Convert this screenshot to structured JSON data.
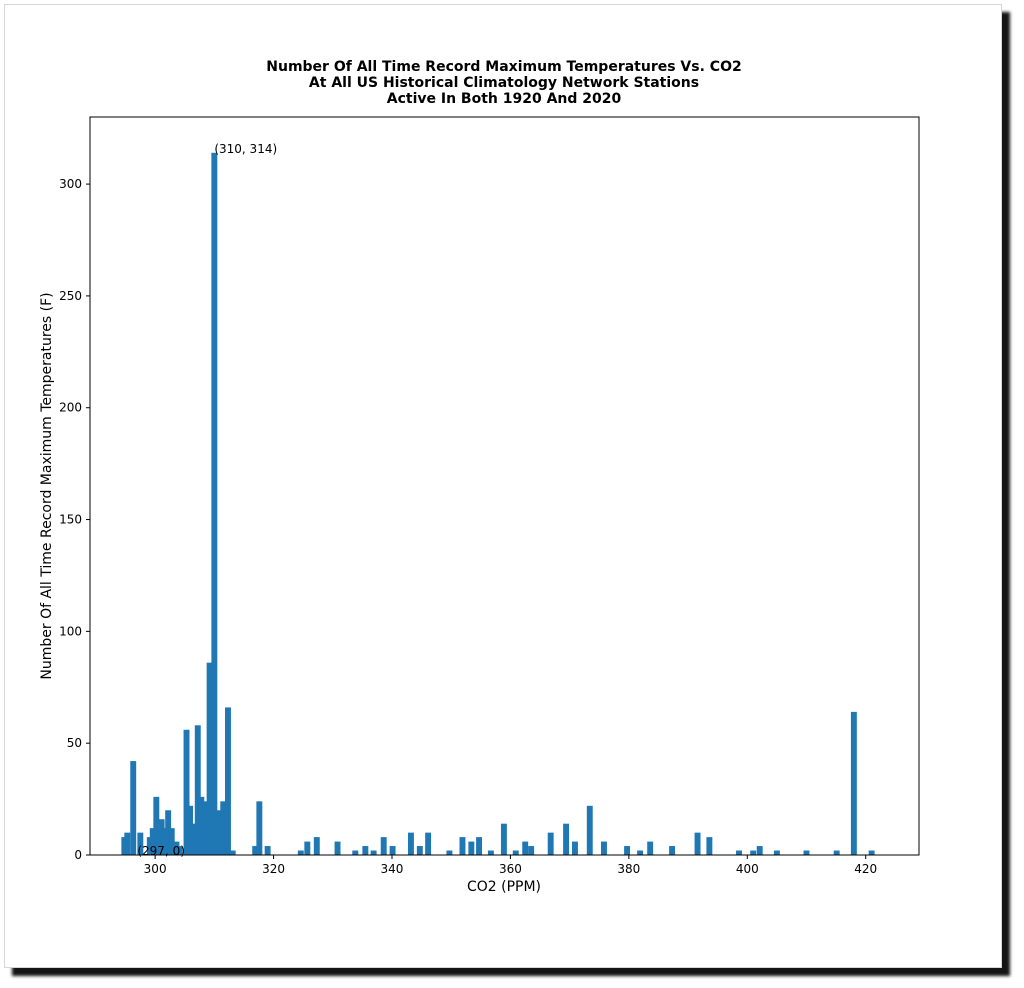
{
  "chart_data": {
    "type": "bar",
    "title_lines": [
      "Number Of All Time Record Maximum Temperatures Vs. CO2",
      "At All US Historical Climatology Network Stations",
      "Active In Both 1920 And 2020"
    ],
    "xlabel": "CO2 (PPM)",
    "ylabel": "Number Of All Time Record Maximum Temperatures (F)",
    "xlim": [
      289,
      429
    ],
    "ylim": [
      0,
      330
    ],
    "xticks": [
      300,
      320,
      340,
      360,
      380,
      400,
      420
    ],
    "yticks": [
      0,
      50,
      100,
      150,
      200,
      250,
      300
    ],
    "color": "#1f77b4",
    "bar_width": 1,
    "points": [
      {
        "x": 294.8,
        "y": 8
      },
      {
        "x": 295.3,
        "y": 10
      },
      {
        "x": 296.3,
        "y": 42
      },
      {
        "x": 297.5,
        "y": 10
      },
      {
        "x": 299.1,
        "y": 8
      },
      {
        "x": 299.6,
        "y": 12
      },
      {
        "x": 300.2,
        "y": 26
      },
      {
        "x": 301.1,
        "y": 16
      },
      {
        "x": 301.6,
        "y": 12
      },
      {
        "x": 302.2,
        "y": 20
      },
      {
        "x": 302.8,
        "y": 12
      },
      {
        "x": 303.6,
        "y": 6
      },
      {
        "x": 304.1,
        "y": 4
      },
      {
        "x": 305.3,
        "y": 56
      },
      {
        "x": 305.9,
        "y": 22
      },
      {
        "x": 306.4,
        "y": 14
      },
      {
        "x": 307.2,
        "y": 58
      },
      {
        "x": 307.8,
        "y": 26
      },
      {
        "x": 308.3,
        "y": 24
      },
      {
        "x": 309.2,
        "y": 86
      },
      {
        "x": 310,
        "y": 314
      },
      {
        "x": 310.7,
        "y": 20
      },
      {
        "x": 311.5,
        "y": 24
      },
      {
        "x": 312.3,
        "y": 66
      },
      {
        "x": 313.1,
        "y": 2
      },
      {
        "x": 316.9,
        "y": 4
      },
      {
        "x": 317.6,
        "y": 24
      },
      {
        "x": 319,
        "y": 4
      },
      {
        "x": 324.6,
        "y": 2
      },
      {
        "x": 325.7,
        "y": 6
      },
      {
        "x": 327.3,
        "y": 8
      },
      {
        "x": 330.8,
        "y": 6
      },
      {
        "x": 333.8,
        "y": 2
      },
      {
        "x": 335.5,
        "y": 4
      },
      {
        "x": 336.9,
        "y": 2
      },
      {
        "x": 338.6,
        "y": 8
      },
      {
        "x": 340.1,
        "y": 4
      },
      {
        "x": 343.2,
        "y": 10
      },
      {
        "x": 344.7,
        "y": 4
      },
      {
        "x": 346.1,
        "y": 10
      },
      {
        "x": 349.7,
        "y": 2
      },
      {
        "x": 351.9,
        "y": 8
      },
      {
        "x": 353.4,
        "y": 6
      },
      {
        "x": 354.7,
        "y": 8
      },
      {
        "x": 356.7,
        "y": 2
      },
      {
        "x": 358.9,
        "y": 14
      },
      {
        "x": 360.9,
        "y": 2
      },
      {
        "x": 362.5,
        "y": 6
      },
      {
        "x": 363.5,
        "y": 4
      },
      {
        "x": 366.8,
        "y": 10
      },
      {
        "x": 369.4,
        "y": 14
      },
      {
        "x": 370.9,
        "y": 6
      },
      {
        "x": 373.4,
        "y": 22
      },
      {
        "x": 375.8,
        "y": 6
      },
      {
        "x": 379.7,
        "y": 4
      },
      {
        "x": 381.9,
        "y": 2
      },
      {
        "x": 383.6,
        "y": 6
      },
      {
        "x": 387.3,
        "y": 4
      },
      {
        "x": 391.6,
        "y": 10
      },
      {
        "x": 393.6,
        "y": 8
      },
      {
        "x": 398.6,
        "y": 2
      },
      {
        "x": 401,
        "y": 2
      },
      {
        "x": 402.1,
        "y": 4
      },
      {
        "x": 405,
        "y": 2
      },
      {
        "x": 410,
        "y": 2
      },
      {
        "x": 415.1,
        "y": 2
      },
      {
        "x": 418,
        "y": 64
      },
      {
        "x": 421,
        "y": 2
      }
    ],
    "annotations": [
      {
        "text": "(310, 314)",
        "x": 310,
        "y": 314
      },
      {
        "text": "(297, 0)",
        "x": 297,
        "y": 0
      }
    ]
  }
}
